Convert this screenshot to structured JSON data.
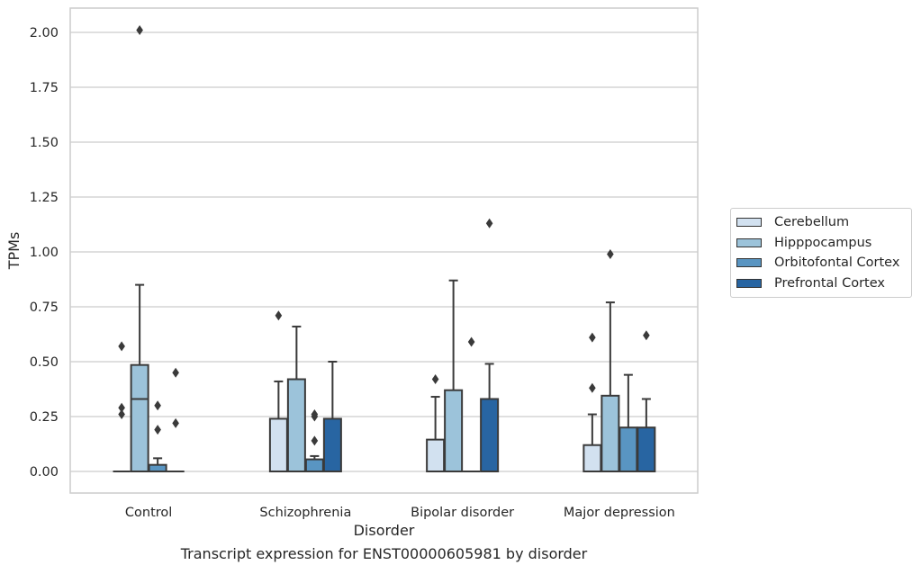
{
  "chart_data": {
    "type": "boxplot",
    "caption": "Transcript expression for ENST00000605981 by disorder",
    "xlabel": "Disorder",
    "ylabel": "TPMs",
    "ylim": [
      -0.1,
      2.1
    ],
    "yticks": [
      "0.00",
      "0.25",
      "0.50",
      "0.75",
      "1.00",
      "1.25",
      "1.50",
      "1.75",
      "2.00"
    ],
    "ytick_values": [
      0,
      0.25,
      0.5,
      0.75,
      1.0,
      1.25,
      1.5,
      1.75,
      2.0
    ],
    "grid": true,
    "legend_position": "right",
    "categories": [
      "Control",
      "Schizophrenia",
      "Bipolar disorder",
      "Major depression"
    ],
    "series": [
      {
        "name": "Cerebellum",
        "color": "#d2e1f0",
        "boxes": [
          {
            "q1": 0,
            "median": 0,
            "q3": 0,
            "whisker_low": 0,
            "whisker_high": 0,
            "outliers": [
              0.57,
              0.29,
              0.26
            ]
          },
          {
            "q1": 0,
            "median": 0,
            "q3": 0.24,
            "whisker_low": 0,
            "whisker_high": 0.41,
            "outliers": [
              0.71
            ]
          },
          {
            "q1": 0,
            "median": 0,
            "q3": 0.145,
            "whisker_low": 0,
            "whisker_high": 0.34,
            "outliers": [
              0.42
            ]
          },
          {
            "q1": 0,
            "median": 0,
            "q3": 0.12,
            "whisker_low": 0,
            "whisker_high": 0.26,
            "outliers": [
              0.61,
              0.38
            ]
          }
        ]
      },
      {
        "name": "Hipppocampus",
        "color": "#9cc3da",
        "boxes": [
          {
            "q1": 0,
            "median": 0.33,
            "q3": 0.485,
            "whisker_low": 0,
            "whisker_high": 0.85,
            "outliers": [
              2.01
            ]
          },
          {
            "q1": 0,
            "median": 0,
            "q3": 0.42,
            "whisker_low": 0,
            "whisker_high": 0.66,
            "outliers": []
          },
          {
            "q1": 0,
            "median": 0,
            "q3": 0.37,
            "whisker_low": 0,
            "whisker_high": 0.87,
            "outliers": []
          },
          {
            "q1": 0,
            "median": 0,
            "q3": 0.345,
            "whisker_low": 0,
            "whisker_high": 0.77,
            "outliers": [
              0.99
            ]
          }
        ]
      },
      {
        "name": "Orbitofontal Cortex",
        "color": "#5995c2",
        "boxes": [
          {
            "q1": 0,
            "median": 0,
            "q3": 0.03,
            "whisker_low": 0,
            "whisker_high": 0.06,
            "outliers": [
              0.3,
              0.19
            ]
          },
          {
            "q1": 0,
            "median": 0,
            "q3": 0.055,
            "whisker_low": 0,
            "whisker_high": 0.07,
            "outliers": [
              0.26,
              0.25,
              0.14
            ]
          },
          {
            "q1": 0,
            "median": 0,
            "q3": 0,
            "whisker_low": 0,
            "whisker_high": 0,
            "outliers": [
              0.59
            ]
          },
          {
            "q1": 0,
            "median": 0,
            "q3": 0.2,
            "whisker_low": 0,
            "whisker_high": 0.44,
            "outliers": []
          }
        ]
      },
      {
        "name": "Prefrontal Cortex",
        "color": "#2865a2",
        "boxes": [
          {
            "q1": 0,
            "median": 0,
            "q3": 0,
            "whisker_low": 0,
            "whisker_high": 0,
            "outliers": [
              0.45,
              0.22
            ]
          },
          {
            "q1": 0,
            "median": 0,
            "q3": 0.24,
            "whisker_low": 0,
            "whisker_high": 0.5,
            "outliers": []
          },
          {
            "q1": 0,
            "median": 0,
            "q3": 0.33,
            "whisker_low": 0,
            "whisker_high": 0.49,
            "outliers": [
              1.13
            ]
          },
          {
            "q1": 0,
            "median": 0,
            "q3": 0.2,
            "whisker_low": 0,
            "whisker_high": 0.33,
            "outliers": [
              0.62
            ]
          }
        ]
      }
    ]
  }
}
